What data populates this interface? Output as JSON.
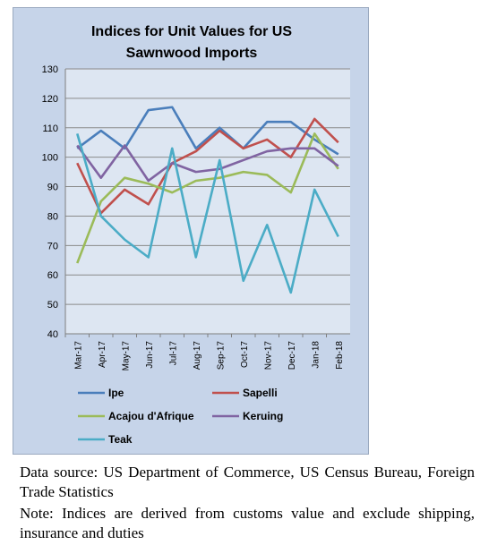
{
  "chart_data": {
    "type": "line",
    "title_lines": [
      "Indices for Unit Values for US",
      "Sawnwood Imports"
    ],
    "categories": [
      "Mar-17",
      "Apr-17",
      "May-17",
      "Jun-17",
      "Jul-17",
      "Aug-17",
      "Sep-17",
      "Oct-17",
      "Nov-17",
      "Dec-17",
      "Jan-18",
      "Feb-18"
    ],
    "ylim": [
      40,
      130
    ],
    "yticks": [
      "40",
      "50",
      "60",
      "70",
      "80",
      "90",
      "100",
      "110",
      "120",
      "130"
    ],
    "grid": true,
    "legend_position": "bottom",
    "series": [
      {
        "name": "Ipe",
        "color": "#4a7ebb",
        "values": [
          103,
          109,
          103,
          116,
          117,
          103,
          110,
          103,
          112,
          112,
          106,
          101
        ]
      },
      {
        "name": "Sapelli",
        "color": "#c0504d",
        "values": [
          98,
          81,
          89,
          84,
          98,
          102,
          109,
          103,
          106,
          100,
          113,
          105
        ]
      },
      {
        "name": "Acajou d'Afrique",
        "color": "#9bbb59",
        "values": [
          64,
          85,
          93,
          91,
          88,
          92,
          93,
          95,
          94,
          88,
          108,
          96
        ]
      },
      {
        "name": "Keruing",
        "color": "#8064a2",
        "values": [
          104,
          93,
          104,
          92,
          98,
          95,
          96,
          99,
          102,
          103,
          103,
          97
        ]
      },
      {
        "name": "Teak",
        "color": "#4bacc6",
        "values": [
          108,
          80,
          72,
          66,
          103,
          66,
          99,
          58,
          77,
          54,
          89,
          73
        ]
      }
    ]
  },
  "footer": {
    "source": "Data source: US Department of Commerce, US Census Bureau, Foreign Trade Statistics",
    "note": "Note: Indices are derived from customs value and exclude shipping, insurance and duties"
  }
}
